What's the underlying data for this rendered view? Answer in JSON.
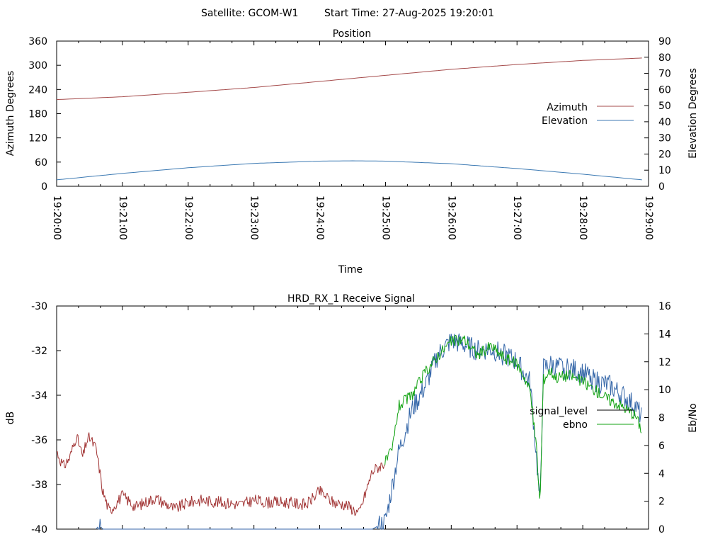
{
  "header": {
    "satellite": "Satellite: GCOM-W1",
    "start_time": "Start Time: 27-Aug-2025 19:20:01"
  },
  "colors": {
    "azimuth": "#a54b4b",
    "elevation": "#3d7ab3",
    "signal_low": "#a23636",
    "signal_high": "#13a313",
    "ebno": "#3466a8"
  },
  "chart_data": [
    {
      "type": "line",
      "title": "Position",
      "xlabel": "Time",
      "ylabel": "Azimuth Degrees",
      "y2label": "Elevation Degrees",
      "x_ticks": [
        "19:20:00",
        "19:21:00",
        "19:22:00",
        "19:23:00",
        "19:24:00",
        "19:25:00",
        "19:26:00",
        "19:27:00",
        "19:28:00",
        "19:29:00"
      ],
      "xlim_minutes": [
        0,
        9
      ],
      "ylim": [
        0,
        360
      ],
      "y_ticks": [
        0,
        60,
        120,
        180,
        240,
        300,
        360
      ],
      "y2lim": [
        0,
        90
      ],
      "y2_ticks": [
        0,
        10,
        20,
        30,
        40,
        50,
        60,
        70,
        80,
        90
      ],
      "legend_position": "right",
      "series": [
        {
          "name": "Azimuth",
          "axis": "left",
          "x_minutes": [
            0,
            1,
            2,
            3,
            4,
            5,
            6,
            7,
            8,
            8.9
          ],
          "values": [
            215,
            222,
            233,
            245,
            260,
            275,
            290,
            302,
            312,
            318
          ]
        },
        {
          "name": "Elevation",
          "axis": "right",
          "x_minutes": [
            0,
            1,
            2,
            3,
            4,
            4.5,
            5,
            6,
            7,
            8,
            8.9
          ],
          "values": [
            4,
            8,
            11.5,
            14.2,
            15.6,
            15.8,
            15.6,
            14.0,
            11.0,
            7.5,
            4
          ]
        }
      ]
    },
    {
      "type": "line",
      "title": "HRD_RX_1 Receive Signal",
      "ylabel": "dB",
      "y2label": "Eb/No",
      "ylim": [
        -40,
        -30
      ],
      "y_ticks": [
        -40,
        -38,
        -36,
        -34,
        -32,
        -30
      ],
      "y2lim": [
        0,
        16
      ],
      "y2_ticks": [
        0,
        2,
        4,
        6,
        8,
        10,
        12,
        14,
        16
      ],
      "legend_position": "right",
      "series": [
        {
          "name": "signal_level",
          "axis": "left",
          "x_minutes": [
            0,
            0.1,
            0.2,
            0.3,
            0.4,
            0.45,
            0.5,
            0.6,
            0.65,
            0.7,
            0.8,
            1.0,
            1.2,
            1.5,
            1.8,
            2.0,
            2.2,
            2.5,
            2.8,
            3.0,
            3.2,
            3.5,
            3.8,
            4.0,
            4.2,
            4.4,
            4.6,
            4.8,
            5.0,
            5.1,
            5.2,
            5.4,
            5.6,
            5.8,
            6.0,
            6.2,
            6.4,
            6.6,
            6.8,
            7.0,
            7.1,
            7.2,
            7.3,
            7.35,
            7.4,
            7.5,
            7.6,
            7.8,
            8.0,
            8.2,
            8.4,
            8.6,
            8.8,
            8.9
          ],
          "values": [
            -36.5,
            -37.2,
            -36.8,
            -35.8,
            -36.8,
            -36.1,
            -35.9,
            -36.4,
            -37.3,
            -38.3,
            -39.2,
            -38.5,
            -39.0,
            -38.6,
            -39.1,
            -38.8,
            -38.7,
            -38.8,
            -38.9,
            -38.7,
            -38.8,
            -38.8,
            -38.9,
            -38.3,
            -38.8,
            -38.9,
            -39.3,
            -37.4,
            -37.0,
            -36.5,
            -34.5,
            -34.0,
            -33.0,
            -32.2,
            -31.6,
            -31.5,
            -32.2,
            -31.8,
            -32.3,
            -32.6,
            -33.1,
            -33.8,
            -36.5,
            -39.0,
            -33.3,
            -32.9,
            -33.2,
            -33.1,
            -33.4,
            -33.8,
            -34.2,
            -34.5,
            -34.9,
            -35.6
          ]
        },
        {
          "name": "ebno",
          "axis": "right",
          "x_minutes": [
            0.6,
            0.65,
            0.7,
            4.8,
            5.0,
            5.1,
            5.2,
            5.4,
            5.6,
            5.8,
            6.0,
            6.2,
            6.4,
            6.6,
            6.8,
            7.0,
            7.1,
            7.2,
            7.3,
            7.35,
            7.4,
            7.5,
            7.6,
            7.8,
            8.0,
            8.2,
            8.4,
            8.6,
            8.8,
            8.9
          ],
          "values": [
            0,
            0.3,
            0,
            0,
            0.5,
            3.0,
            5.5,
            8.5,
            10.2,
            12.5,
            13.5,
            13.2,
            12.8,
            12.9,
            12.5,
            12.0,
            11.2,
            10.5,
            5.0,
            1.5,
            11.5,
            11.8,
            11.6,
            11.5,
            11.2,
            10.6,
            10.3,
            9.6,
            8.8,
            8.0
          ]
        }
      ]
    }
  ]
}
